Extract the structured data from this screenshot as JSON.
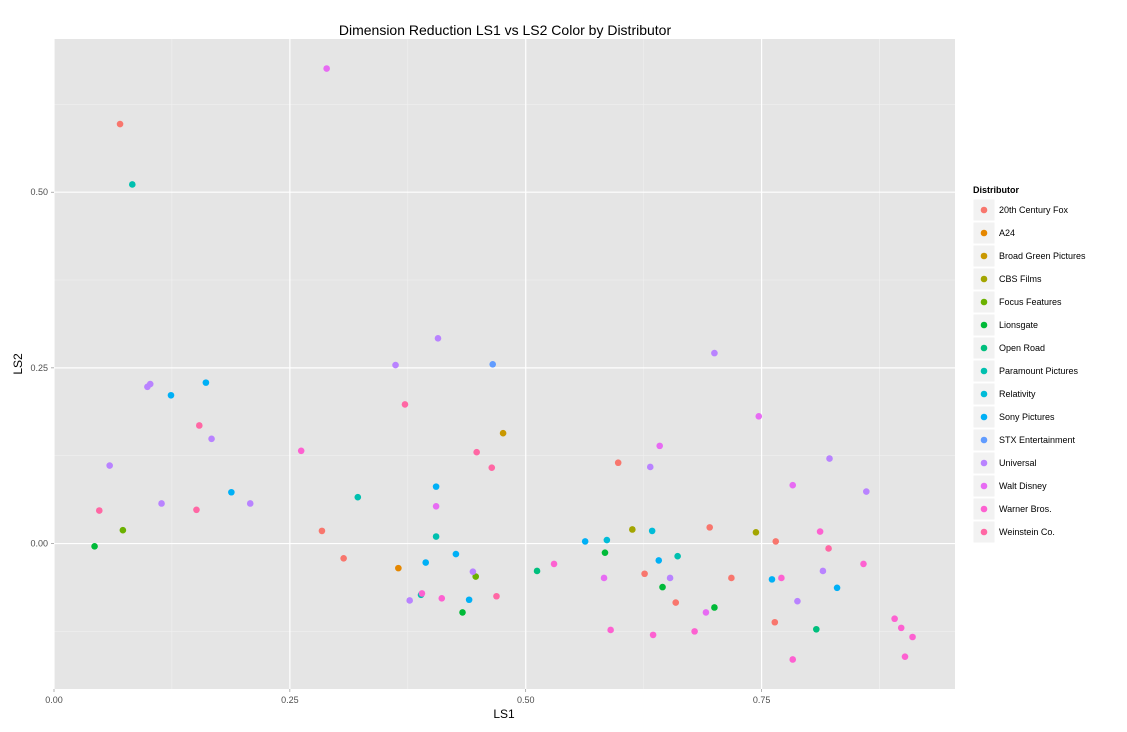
{
  "chart_data": {
    "type": "scatter",
    "title": "Dimension Reduction LS1 vs LS2 Color by Distributor",
    "xlabel": "LS1",
    "ylabel": "LS2",
    "xlim": [
      0.0,
      0.955
    ],
    "ylim": [
      -0.207,
      0.718
    ],
    "x_ticks": [
      0.0,
      0.25,
      0.5,
      0.75
    ],
    "x_tick_labels": [
      "0.00",
      "0.25",
      "0.50",
      "0.75"
    ],
    "y_ticks": [
      0.0,
      0.25,
      0.5
    ],
    "y_tick_labels": [
      "0.00",
      "0.25",
      "0.50"
    ],
    "grid": true,
    "legend": {
      "title": "Distributor",
      "position": "right"
    },
    "series": [
      {
        "name": "20th Century Fox",
        "color": "#F8766D",
        "points": [
          [
            0.07,
            0.597
          ],
          [
            0.284,
            0.018
          ],
          [
            0.307,
            -0.021
          ],
          [
            0.598,
            0.115
          ],
          [
            0.626,
            -0.043
          ],
          [
            0.659,
            -0.084
          ],
          [
            0.695,
            0.023
          ],
          [
            0.718,
            -0.049
          ],
          [
            0.765,
            0.003
          ],
          [
            0.764,
            -0.112
          ]
        ]
      },
      {
        "name": "A24",
        "color": "#E58700",
        "points": [
          [
            0.365,
            -0.035
          ]
        ]
      },
      {
        "name": "Broad Green Pictures",
        "color": "#C99800",
        "points": [
          [
            0.476,
            0.157
          ]
        ]
      },
      {
        "name": "CBS Films",
        "color": "#A3A500",
        "points": [
          [
            0.613,
            0.02
          ],
          [
            0.744,
            0.016
          ]
        ]
      },
      {
        "name": "Focus Features",
        "color": "#6BB100",
        "points": [
          [
            0.073,
            0.019
          ],
          [
            0.447,
            -0.047
          ]
        ]
      },
      {
        "name": "Lionsgate",
        "color": "#00BA38",
        "points": [
          [
            0.043,
            -0.004
          ],
          [
            0.433,
            -0.098
          ],
          [
            0.584,
            -0.013
          ],
          [
            0.645,
            -0.062
          ],
          [
            0.7,
            -0.091
          ]
        ]
      },
      {
        "name": "Open Road",
        "color": "#00BF7D",
        "points": [
          [
            0.512,
            -0.039
          ],
          [
            0.808,
            -0.122
          ]
        ]
      },
      {
        "name": "Paramount Pictures",
        "color": "#00C0AF",
        "points": [
          [
            0.083,
            0.511
          ],
          [
            0.322,
            0.066
          ],
          [
            0.405,
            0.01
          ],
          [
            0.389,
            -0.073
          ],
          [
            0.661,
            -0.018
          ]
        ]
      },
      {
        "name": "Relativity",
        "color": "#00BCD8",
        "points": [
          [
            0.586,
            0.005
          ],
          [
            0.634,
            0.018
          ]
        ]
      },
      {
        "name": "Sony Pictures",
        "color": "#00B0F6",
        "points": [
          [
            0.124,
            0.211
          ],
          [
            0.161,
            0.229
          ],
          [
            0.188,
            0.073
          ],
          [
            0.394,
            -0.027
          ],
          [
            0.405,
            0.081
          ],
          [
            0.426,
            -0.015
          ],
          [
            0.44,
            -0.08
          ],
          [
            0.563,
            0.003
          ],
          [
            0.641,
            -0.024
          ],
          [
            0.761,
            -0.051
          ],
          [
            0.83,
            -0.063
          ]
        ]
      },
      {
        "name": "STX Entertainment",
        "color": "#619CFF",
        "points": [
          [
            0.465,
            0.255
          ]
        ]
      },
      {
        "name": "Universal",
        "color": "#B983FF",
        "points": [
          [
            0.059,
            0.111
          ],
          [
            0.099,
            0.223
          ],
          [
            0.102,
            0.227
          ],
          [
            0.114,
            0.057
          ],
          [
            0.167,
            0.149
          ],
          [
            0.208,
            0.057
          ],
          [
            0.362,
            0.254
          ],
          [
            0.377,
            -0.081
          ],
          [
            0.407,
            0.292
          ],
          [
            0.444,
            -0.04
          ],
          [
            0.632,
            0.109
          ],
          [
            0.653,
            -0.049
          ],
          [
            0.7,
            0.271
          ],
          [
            0.788,
            -0.082
          ],
          [
            0.815,
            -0.039
          ],
          [
            0.822,
            0.121
          ],
          [
            0.861,
            0.074
          ]
        ]
      },
      {
        "name": "Walt Disney",
        "color": "#E76BF3",
        "points": [
          [
            0.289,
            0.676
          ],
          [
            0.405,
            0.053
          ],
          [
            0.583,
            -0.049
          ],
          [
            0.642,
            0.139
          ],
          [
            0.691,
            -0.098
          ],
          [
            0.747,
            0.181
          ],
          [
            0.783,
            0.083
          ]
        ]
      },
      {
        "name": "Warner Bros.",
        "color": "#FD61D1",
        "points": [
          [
            0.262,
            0.132
          ],
          [
            0.39,
            -0.071
          ],
          [
            0.411,
            -0.078
          ],
          [
            0.53,
            -0.029
          ],
          [
            0.59,
            -0.123
          ],
          [
            0.635,
            -0.13
          ],
          [
            0.679,
            -0.125
          ],
          [
            0.771,
            -0.049
          ],
          [
            0.783,
            -0.165
          ],
          [
            0.812,
            0.017
          ],
          [
            0.858,
            -0.029
          ],
          [
            0.891,
            -0.107
          ],
          [
            0.898,
            -0.12
          ],
          [
            0.902,
            -0.161
          ],
          [
            0.91,
            -0.133
          ]
        ]
      },
      {
        "name": "Weinstein Co.",
        "color": "#FF67A4",
        "points": [
          [
            0.048,
            0.047
          ],
          [
            0.151,
            0.048
          ],
          [
            0.154,
            0.168
          ],
          [
            0.372,
            0.198
          ],
          [
            0.448,
            0.13
          ],
          [
            0.464,
            0.108
          ],
          [
            0.469,
            -0.075
          ],
          [
            0.821,
            -0.007
          ]
        ]
      }
    ]
  }
}
